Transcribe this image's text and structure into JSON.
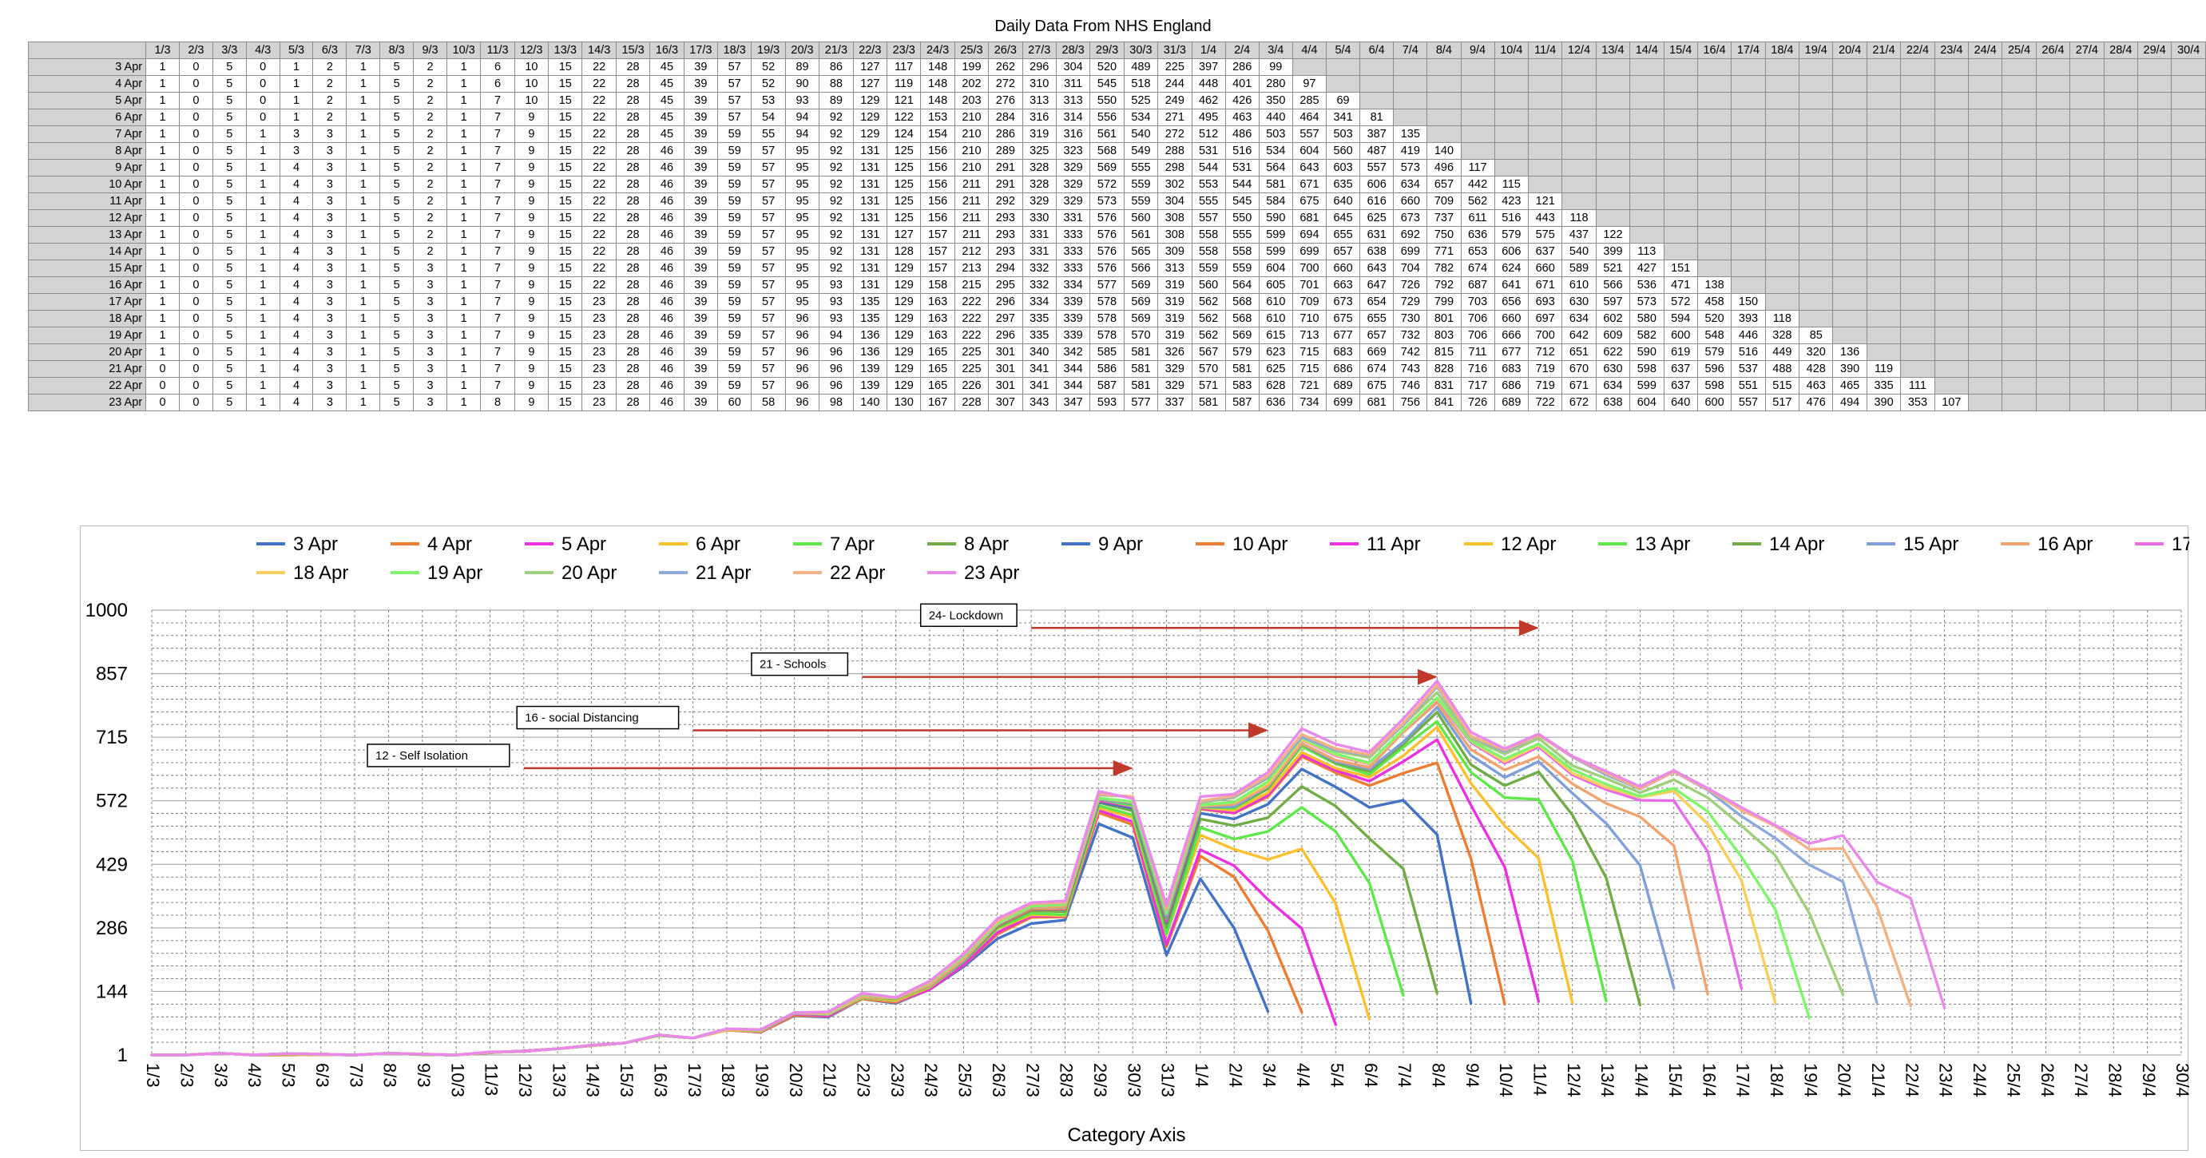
{
  "table": {
    "title": "Daily Data From NHS England",
    "column_headers": [
      "1/3",
      "2/3",
      "3/3",
      "4/3",
      "5/3",
      "6/3",
      "7/3",
      "8/3",
      "9/3",
      "10/3",
      "11/3",
      "12/3",
      "13/3",
      "14/3",
      "15/3",
      "16/3",
      "17/3",
      "18/3",
      "19/3",
      "20/3",
      "21/3",
      "22/3",
      "23/3",
      "24/3",
      "25/3",
      "26/3",
      "27/3",
      "28/3",
      "29/3",
      "30/3",
      "31/3",
      "1/4",
      "2/4",
      "3/4",
      "4/4",
      "5/4",
      "6/4",
      "7/4",
      "8/4",
      "9/4",
      "10/4",
      "11/4",
      "12/4",
      "13/4",
      "14/4",
      "15/4",
      "16/4",
      "17/4",
      "18/4",
      "19/4",
      "20/4",
      "21/4",
      "22/4",
      "23/4",
      "24/4",
      "25/4",
      "26/4",
      "27/4",
      "28/4",
      "29/4",
      "30/4"
    ],
    "rows": [
      {
        "label": "3 Apr",
        "values": [
          1,
          0,
          5,
          0,
          1,
          2,
          1,
          5,
          2,
          1,
          6,
          10,
          15,
          22,
          28,
          45,
          39,
          57,
          52,
          89,
          86,
          127,
          117,
          148,
          199,
          262,
          296,
          304,
          520,
          489,
          225,
          397,
          286,
          99
        ]
      },
      {
        "label": "4 Apr",
        "values": [
          1,
          0,
          5,
          0,
          1,
          2,
          1,
          5,
          2,
          1,
          6,
          10,
          15,
          22,
          28,
          45,
          39,
          57,
          52,
          90,
          88,
          127,
          119,
          148,
          202,
          272,
          310,
          311,
          545,
          518,
          244,
          448,
          401,
          280,
          97
        ]
      },
      {
        "label": "5 Apr",
        "values": [
          1,
          0,
          5,
          0,
          1,
          2,
          1,
          5,
          2,
          1,
          7,
          10,
          15,
          22,
          28,
          45,
          39,
          57,
          53,
          93,
          89,
          129,
          121,
          148,
          203,
          276,
          313,
          313,
          550,
          525,
          249,
          462,
          426,
          350,
          285,
          69
        ]
      },
      {
        "label": "6 Apr",
        "values": [
          1,
          0,
          5,
          0,
          1,
          2,
          1,
          5,
          2,
          1,
          7,
          9,
          15,
          22,
          28,
          45,
          39,
          57,
          54,
          94,
          92,
          129,
          122,
          153,
          210,
          284,
          316,
          314,
          556,
          534,
          271,
          495,
          463,
          440,
          464,
          341,
          81
        ]
      },
      {
        "label": "7 Apr",
        "values": [
          1,
          0,
          5,
          1,
          3,
          3,
          1,
          5,
          2,
          1,
          7,
          9,
          15,
          22,
          28,
          45,
          39,
          59,
          55,
          94,
          92,
          129,
          124,
          154,
          210,
          286,
          319,
          316,
          561,
          540,
          272,
          512,
          486,
          503,
          557,
          503,
          387,
          135
        ]
      },
      {
        "label": "8 Apr",
        "values": [
          1,
          0,
          5,
          1,
          3,
          3,
          1,
          5,
          2,
          1,
          7,
          9,
          15,
          22,
          28,
          46,
          39,
          59,
          57,
          95,
          92,
          131,
          125,
          156,
          210,
          289,
          325,
          323,
          568,
          549,
          288,
          531,
          516,
          534,
          604,
          560,
          487,
          419,
          140
        ]
      },
      {
        "label": "9 Apr",
        "values": [
          1,
          0,
          5,
          1,
          4,
          3,
          1,
          5,
          2,
          1,
          7,
          9,
          15,
          22,
          28,
          46,
          39,
          59,
          57,
          95,
          92,
          131,
          125,
          156,
          210,
          291,
          328,
          329,
          569,
          555,
          298,
          544,
          531,
          564,
          643,
          603,
          557,
          573,
          496,
          117
        ]
      },
      {
        "label": "10 Apr",
        "values": [
          1,
          0,
          5,
          1,
          4,
          3,
          1,
          5,
          2,
          1,
          7,
          9,
          15,
          22,
          28,
          46,
          39,
          59,
          57,
          95,
          92,
          131,
          125,
          156,
          211,
          291,
          328,
          329,
          572,
          559,
          302,
          553,
          544,
          581,
          671,
          635,
          606,
          634,
          657,
          442,
          115
        ]
      },
      {
        "label": "11 Apr",
        "values": [
          1,
          0,
          5,
          1,
          4,
          3,
          1,
          5,
          2,
          1,
          7,
          9,
          15,
          22,
          28,
          46,
          39,
          59,
          57,
          95,
          92,
          131,
          125,
          156,
          211,
          292,
          329,
          329,
          573,
          559,
          304,
          555,
          545,
          584,
          675,
          640,
          616,
          660,
          709,
          562,
          423,
          121
        ]
      },
      {
        "label": "12 Apr",
        "values": [
          1,
          0,
          5,
          1,
          4,
          3,
          1,
          5,
          2,
          1,
          7,
          9,
          15,
          22,
          28,
          46,
          39,
          59,
          57,
          95,
          92,
          131,
          125,
          156,
          211,
          293,
          330,
          331,
          576,
          560,
          308,
          557,
          550,
          590,
          681,
          645,
          625,
          673,
          737,
          611,
          516,
          443,
          118
        ]
      },
      {
        "label": "13 Apr",
        "values": [
          1,
          0,
          5,
          1,
          4,
          3,
          1,
          5,
          2,
          1,
          7,
          9,
          15,
          22,
          28,
          46,
          39,
          59,
          57,
          95,
          92,
          131,
          127,
          157,
          211,
          293,
          331,
          333,
          576,
          561,
          308,
          558,
          555,
          599,
          694,
          655,
          631,
          692,
          750,
          636,
          579,
          575,
          437,
          122
        ]
      },
      {
        "label": "14 Apr",
        "values": [
          1,
          0,
          5,
          1,
          4,
          3,
          1,
          5,
          2,
          1,
          7,
          9,
          15,
          22,
          28,
          46,
          39,
          59,
          57,
          95,
          92,
          131,
          128,
          157,
          212,
          293,
          331,
          333,
          576,
          565,
          309,
          558,
          558,
          599,
          699,
          657,
          638,
          699,
          771,
          653,
          606,
          637,
          540,
          399,
          113
        ]
      },
      {
        "label": "15 Apr",
        "values": [
          1,
          0,
          5,
          1,
          4,
          3,
          1,
          5,
          3,
          1,
          7,
          9,
          15,
          22,
          28,
          46,
          39,
          59,
          57,
          95,
          92,
          131,
          129,
          157,
          213,
          294,
          332,
          333,
          576,
          566,
          313,
          559,
          559,
          604,
          700,
          660,
          643,
          704,
          782,
          674,
          624,
          660,
          589,
          521,
          427,
          151
        ]
      },
      {
        "label": "16 Apr",
        "values": [
          1,
          0,
          5,
          1,
          4,
          3,
          1,
          5,
          3,
          1,
          7,
          9,
          15,
          22,
          28,
          46,
          39,
          59,
          57,
          95,
          93,
          131,
          129,
          158,
          215,
          295,
          332,
          334,
          577,
          569,
          319,
          560,
          564,
          605,
          701,
          663,
          647,
          726,
          792,
          687,
          641,
          671,
          610,
          566,
          536,
          471,
          138
        ]
      },
      {
        "label": "17 Apr",
        "values": [
          1,
          0,
          5,
          1,
          4,
          3,
          1,
          5,
          3,
          1,
          7,
          9,
          15,
          23,
          28,
          46,
          39,
          59,
          57,
          95,
          93,
          135,
          129,
          163,
          222,
          296,
          334,
          339,
          578,
          569,
          319,
          562,
          568,
          610,
          709,
          673,
          654,
          729,
          799,
          703,
          656,
          693,
          630,
          597,
          573,
          572,
          458,
          150
        ]
      },
      {
        "label": "18 Apr",
        "values": [
          1,
          0,
          5,
          1,
          4,
          3,
          1,
          5,
          3,
          1,
          7,
          9,
          15,
          23,
          28,
          46,
          39,
          59,
          57,
          96,
          93,
          135,
          129,
          163,
          222,
          297,
          335,
          339,
          578,
          569,
          319,
          562,
          568,
          610,
          710,
          675,
          655,
          730,
          801,
          706,
          660,
          697,
          634,
          602,
          580,
          594,
          520,
          393,
          118
        ]
      },
      {
        "label": "19 Apr",
        "values": [
          1,
          0,
          5,
          1,
          4,
          3,
          1,
          5,
          3,
          1,
          7,
          9,
          15,
          23,
          28,
          46,
          39,
          59,
          57,
          96,
          94,
          136,
          129,
          163,
          222,
          296,
          335,
          339,
          578,
          570,
          319,
          562,
          569,
          615,
          713,
          677,
          657,
          732,
          803,
          706,
          666,
          700,
          642,
          609,
          582,
          600,
          548,
          446,
          328,
          85
        ]
      },
      {
        "label": "20 Apr",
        "values": [
          1,
          0,
          5,
          1,
          4,
          3,
          1,
          5,
          3,
          1,
          7,
          9,
          15,
          23,
          28,
          46,
          39,
          59,
          57,
          96,
          96,
          136,
          129,
          165,
          225,
          301,
          340,
          342,
          585,
          581,
          326,
          567,
          579,
          623,
          715,
          683,
          669,
          742,
          815,
          711,
          677,
          712,
          651,
          622,
          590,
          619,
          579,
          516,
          449,
          320,
          136
        ]
      },
      {
        "label": "21 Apr",
        "values": [
          0,
          0,
          5,
          1,
          4,
          3,
          1,
          5,
          3,
          1,
          7,
          9,
          15,
          23,
          28,
          46,
          39,
          59,
          57,
          96,
          96,
          139,
          129,
          165,
          225,
          301,
          341,
          344,
          586,
          581,
          329,
          570,
          581,
          625,
          715,
          686,
          674,
          743,
          828,
          716,
          683,
          719,
          670,
          630,
          598,
          637,
          596,
          537,
          488,
          428,
          390,
          119
        ]
      },
      {
        "label": "22 Apr",
        "values": [
          0,
          0,
          5,
          1,
          4,
          3,
          1,
          5,
          3,
          1,
          7,
          9,
          15,
          23,
          28,
          46,
          39,
          59,
          57,
          96,
          96,
          139,
          129,
          165,
          226,
          301,
          341,
          344,
          587,
          581,
          329,
          571,
          583,
          628,
          721,
          689,
          675,
          746,
          831,
          717,
          686,
          719,
          671,
          634,
          599,
          637,
          598,
          551,
          515,
          463,
          465,
          335,
          111
        ]
      },
      {
        "label": "23 Apr",
        "values": [
          0,
          0,
          5,
          1,
          4,
          3,
          1,
          5,
          3,
          1,
          8,
          9,
          15,
          23,
          28,
          46,
          39,
          60,
          58,
          96,
          98,
          140,
          130,
          167,
          228,
          307,
          343,
          347,
          593,
          577,
          337,
          581,
          587,
          636,
          734,
          699,
          681,
          756,
          841,
          726,
          689,
          722,
          672,
          638,
          604,
          640,
          600,
          557,
          517,
          476,
          494,
          390,
          353,
          107
        ]
      }
    ]
  },
  "chart_data": {
    "type": "line",
    "title": "",
    "xlabel": "Category Axis",
    "ylabel": "",
    "ylim": [
      1,
      1000
    ],
    "y_ticks": [
      "1",
      "144",
      "286",
      "429",
      "572",
      "715",
      "857",
      "1000"
    ],
    "x_categories": [
      "1/3",
      "2/3",
      "3/3",
      "4/3",
      "5/3",
      "6/3",
      "7/3",
      "8/3",
      "9/3",
      "10/3",
      "11/3",
      "12/3",
      "13/3",
      "14/3",
      "15/3",
      "16/3",
      "17/3",
      "18/3",
      "19/3",
      "20/3",
      "21/3",
      "22/3",
      "23/3",
      "24/3",
      "25/3",
      "26/3",
      "27/3",
      "28/3",
      "29/3",
      "30/3",
      "31/3",
      "1/4",
      "2/4",
      "3/4",
      "4/4",
      "5/4",
      "6/4",
      "7/4",
      "8/4",
      "9/4",
      "10/4",
      "11/4",
      "12/4",
      "13/4",
      "14/4",
      "15/4",
      "16/4",
      "17/4",
      "18/4",
      "19/4",
      "20/4",
      "21/4",
      "22/4",
      "23/4",
      "24/4",
      "25/4",
      "26/4",
      "27/4",
      "28/4",
      "29/4",
      "30/4"
    ],
    "grid": true,
    "legend_placement": "top",
    "series_colors": [
      "#4472c4",
      "#ed7d31",
      "#ea33e0",
      "#fcbf2e",
      "#5ee84a",
      "#70ad47",
      "#4472c4",
      "#ed7d31",
      "#ea33e0",
      "#fcbf2e",
      "#5ee84a",
      "#70ad47",
      "#7f9fd8",
      "#f2a470",
      "#e86ce6",
      "#fbce5c",
      "#7ff56c",
      "#9fcf7d",
      "#8eaadb",
      "#f4b183",
      "#e989ea"
    ],
    "series_source": "table.rows",
    "annotations": [
      {
        "label": "24- Lockdown",
        "arrow_from": "27/3",
        "arrow_to": "11/4",
        "y": 960
      },
      {
        "label": "21 - Schools",
        "arrow_from": "22/3",
        "arrow_to": "8/4",
        "y": 850
      },
      {
        "label": "16 - social Distancing",
        "arrow_from": "17/3",
        "arrow_to": "3/4",
        "y": 730
      },
      {
        "label": "12 - Self Isolation",
        "arrow_from": "12/3",
        "arrow_to": "30/3",
        "y": 645
      }
    ],
    "annotation_color": "#c0392b"
  }
}
